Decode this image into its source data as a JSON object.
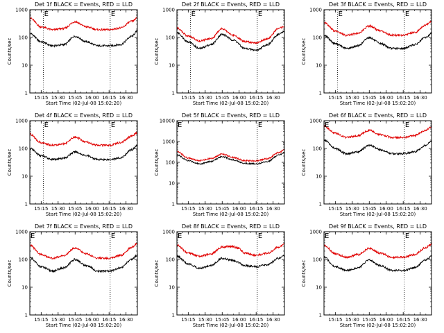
{
  "chart_data": [
    {
      "type": "line",
      "title": "Det 1f BLACK = Events, RED = LLD",
      "xlabel": "Start Time (02-Jul-08 15:02:20)",
      "ylabel": "Counts/sec",
      "yscale": "log",
      "ylim": [
        1,
        1000
      ],
      "xlim": [
        "15:05",
        "16:40"
      ],
      "x_ticks": [
        "15:15",
        "15:30",
        "15:45",
        "16:00",
        "16:15",
        "16:30"
      ],
      "y_ticks": [
        "1",
        "10",
        "100",
        "1000"
      ],
      "markers": [
        {
          "label": "E",
          "time": "15:17"
        },
        {
          "label": "E",
          "time": "16:16"
        }
      ],
      "grid": false,
      "series": [
        {
          "name": "Events",
          "color": "#000000",
          "x": [
            "15:05",
            "15:15",
            "15:25",
            "15:35",
            "15:45",
            "15:55",
            "16:05",
            "16:15",
            "16:25",
            "16:35",
            "16:40"
          ],
          "values": [
            140,
            70,
            50,
            55,
            110,
            70,
            50,
            50,
            55,
            110,
            170
          ]
        },
        {
          "name": "LLD",
          "color": "#e00000",
          "x": [
            "15:05",
            "15:15",
            "15:25",
            "15:35",
            "15:45",
            "15:55",
            "16:05",
            "16:15",
            "16:25",
            "16:35",
            "16:40"
          ],
          "values": [
            500,
            240,
            190,
            210,
            370,
            240,
            190,
            190,
            220,
            380,
            500
          ]
        }
      ]
    },
    {
      "type": "line",
      "title": "Det 2f BLACK = Events, RED = LLD",
      "xlabel": "Start Time (02-Jul-08 15:02:20)",
      "ylabel": "Counts/sec",
      "yscale": "log",
      "ylim": [
        1,
        1000
      ],
      "xlim": [
        "15:05",
        "16:40"
      ],
      "x_ticks": [
        "15:15",
        "15:30",
        "15:45",
        "16:00",
        "16:15",
        "16:30"
      ],
      "y_ticks": [
        "1",
        "10",
        "100",
        "1000"
      ],
      "markers": [
        {
          "label": "E",
          "time": "15:17"
        },
        {
          "label": "E",
          "time": "16:16"
        }
      ],
      "grid": false,
      "series": [
        {
          "name": "Events",
          "color": "#000000",
          "x": [
            "15:05",
            "15:15",
            "15:25",
            "15:35",
            "15:45",
            "15:55",
            "16:05",
            "16:15",
            "16:25",
            "16:35",
            "16:40"
          ],
          "values": [
            150,
            70,
            40,
            55,
            130,
            80,
            40,
            35,
            55,
            130,
            170
          ]
        },
        {
          "name": "LLD",
          "color": "#e00000",
          "x": [
            "15:05",
            "15:15",
            "15:25",
            "15:35",
            "15:45",
            "15:55",
            "16:05",
            "16:15",
            "16:25",
            "16:35",
            "16:40"
          ],
          "values": [
            220,
            110,
            75,
            90,
            210,
            120,
            70,
            65,
            90,
            210,
            250
          ]
        }
      ]
    },
    {
      "type": "line",
      "title": "Det 3f BLACK = Events, RED = LLD",
      "xlabel": "Start Time (02-Jul-08 15:02:20)",
      "ylabel": "Counts/sec",
      "yscale": "log",
      "ylim": [
        1,
        1000
      ],
      "xlim": [
        "15:05",
        "16:40"
      ],
      "x_ticks": [
        "15:15",
        "15:30",
        "15:45",
        "16:00",
        "16:15",
        "16:30"
      ],
      "y_ticks": [
        "1",
        "10",
        "100",
        "1000"
      ],
      "markers": [
        {
          "label": "E",
          "time": "15:17"
        },
        {
          "label": "E",
          "time": "16:16"
        }
      ],
      "grid": false,
      "series": [
        {
          "name": "Events",
          "color": "#000000",
          "x": [
            "15:05",
            "15:15",
            "15:25",
            "15:35",
            "15:45",
            "15:55",
            "16:05",
            "16:15",
            "16:25",
            "16:35",
            "16:40"
          ],
          "values": [
            120,
            60,
            40,
            50,
            100,
            60,
            40,
            40,
            55,
            100,
            140
          ]
        },
        {
          "name": "LLD",
          "color": "#e00000",
          "x": [
            "15:05",
            "15:15",
            "15:25",
            "15:35",
            "15:45",
            "15:55",
            "16:05",
            "16:15",
            "16:25",
            "16:35",
            "16:40"
          ],
          "values": [
            350,
            170,
            120,
            140,
            260,
            170,
            120,
            120,
            150,
            280,
            380
          ]
        }
      ]
    },
    {
      "type": "line",
      "title": "Det 4f BLACK = Events, RED = LLD",
      "xlabel": "Start Time (02-Jul-08 15:02:20)",
      "ylabel": "Counts/sec",
      "yscale": "log",
      "ylim": [
        1,
        1000
      ],
      "xlim": [
        "15:05",
        "16:40"
      ],
      "x_ticks": [
        "15:15",
        "15:30",
        "15:45",
        "16:00",
        "16:15",
        "16:30"
      ],
      "y_ticks": [
        "1",
        "10",
        "100",
        "1000"
      ],
      "markers": [
        {
          "label": "E",
          "time": "15:17"
        },
        {
          "label": "E",
          "time": "16:16"
        }
      ],
      "grid": false,
      "series": [
        {
          "name": "Events",
          "color": "#000000",
          "x": [
            "15:05",
            "15:15",
            "15:25",
            "15:35",
            "15:45",
            "15:55",
            "16:05",
            "16:15",
            "16:25",
            "16:35",
            "16:40"
          ],
          "values": [
            100,
            55,
            40,
            45,
            75,
            55,
            40,
            40,
            45,
            90,
            130
          ]
        },
        {
          "name": "LLD",
          "color": "#e00000",
          "x": [
            "15:05",
            "15:15",
            "15:25",
            "15:35",
            "15:45",
            "15:55",
            "16:05",
            "16:15",
            "16:25",
            "16:35",
            "16:40"
          ],
          "values": [
            330,
            160,
            130,
            150,
            260,
            170,
            130,
            130,
            160,
            280,
            380
          ]
        }
      ]
    },
    {
      "type": "line",
      "title": "Det 5f BLACK = Events, RED = LLD",
      "xlabel": "Start Time (02-Jul-08 15:02:20)",
      "ylabel": "Counts/sec",
      "yscale": "log",
      "ylim": [
        1,
        10000
      ],
      "xlim": [
        "15:05",
        "16:40"
      ],
      "x_ticks": [
        "15:15",
        "15:30",
        "15:45",
        "16:00",
        "16:15",
        "16:30"
      ],
      "y_ticks": [
        "1",
        "10",
        "100",
        "1000",
        "10000"
      ],
      "markers": [
        {
          "label": "E",
          "time": "15:05"
        },
        {
          "label": "E",
          "time": "16:16"
        }
      ],
      "grid": false,
      "series": [
        {
          "name": "Events",
          "color": "#000000",
          "x": [
            "15:05",
            "15:15",
            "15:25",
            "15:35",
            "15:45",
            "15:55",
            "16:05",
            "16:15",
            "16:25",
            "16:35",
            "16:40"
          ],
          "values": [
            230,
            120,
            85,
            110,
            190,
            130,
            90,
            85,
            110,
            220,
            300
          ]
        },
        {
          "name": "LLD",
          "color": "#e00000",
          "x": [
            "15:05",
            "15:15",
            "15:25",
            "15:35",
            "15:45",
            "15:55",
            "16:05",
            "16:15",
            "16:25",
            "16:35",
            "16:40"
          ],
          "values": [
            330,
            160,
            120,
            150,
            250,
            170,
            120,
            120,
            150,
            290,
            400
          ]
        }
      ]
    },
    {
      "type": "line",
      "title": "Det 6f BLACK = Events, RED = LLD",
      "xlabel": "Start Time (02-Jul-08 15:02:20)",
      "ylabel": "Counts/sec",
      "yscale": "log",
      "ylim": [
        1,
        1000
      ],
      "xlim": [
        "15:05",
        "16:40"
      ],
      "x_ticks": [
        "15:15",
        "15:30",
        "15:45",
        "16:00",
        "16:15",
        "16:30"
      ],
      "y_ticks": [
        "1",
        "10",
        "100",
        "1000"
      ],
      "markers": [
        {
          "label": "E",
          "time": "15:05"
        },
        {
          "label": "E",
          "time": "16:16"
        }
      ],
      "grid": false,
      "series": [
        {
          "name": "Events",
          "color": "#000000",
          "x": [
            "15:05",
            "15:15",
            "15:25",
            "15:35",
            "15:45",
            "15:55",
            "16:05",
            "16:15",
            "16:25",
            "16:35",
            "16:40"
          ],
          "values": [
            200,
            100,
            65,
            75,
            130,
            90,
            65,
            65,
            75,
            130,
            180
          ]
        },
        {
          "name": "LLD",
          "color": "#e00000",
          "x": [
            "15:05",
            "15:15",
            "15:25",
            "15:35",
            "15:45",
            "15:55",
            "16:05",
            "16:15",
            "16:25",
            "16:35",
            "16:40"
          ],
          "values": [
            650,
            350,
            250,
            290,
            450,
            320,
            250,
            250,
            290,
            450,
            620
          ]
        }
      ]
    },
    {
      "type": "line",
      "title": "Det 7f BLACK = Events, RED = LLD",
      "xlabel": "Start Time (02-Jul-08 15:02:20)",
      "ylabel": "Counts/sec",
      "yscale": "log",
      "ylim": [
        1,
        1000
      ],
      "xlim": [
        "15:05",
        "16:40"
      ],
      "x_ticks": [
        "15:15",
        "15:30",
        "15:45",
        "16:00",
        "16:15",
        "16:30"
      ],
      "y_ticks": [
        "1",
        "10",
        "100",
        "1000"
      ],
      "markers": [
        {
          "label": "E",
          "time": "15:05"
        },
        {
          "label": "E",
          "time": "16:16"
        }
      ],
      "grid": false,
      "series": [
        {
          "name": "Events",
          "color": "#000000",
          "x": [
            "15:05",
            "15:15",
            "15:25",
            "15:35",
            "15:45",
            "15:55",
            "16:05",
            "16:15",
            "16:25",
            "16:35",
            "16:40"
          ],
          "values": [
            120,
            55,
            38,
            50,
            100,
            60,
            38,
            38,
            50,
            100,
            140
          ]
        },
        {
          "name": "LLD",
          "color": "#e00000",
          "x": [
            "15:05",
            "15:15",
            "15:25",
            "15:35",
            "15:45",
            "15:55",
            "16:05",
            "16:15",
            "16:25",
            "16:35",
            "16:40"
          ],
          "values": [
            330,
            150,
            110,
            140,
            260,
            160,
            110,
            110,
            140,
            270,
            370
          ]
        }
      ]
    },
    {
      "type": "line",
      "title": "Det 8f BLACK = Events, RED = LLD",
      "xlabel": "Start Time (02-Jul-08 15:02:20)",
      "ylabel": "Counts/sec",
      "yscale": "log",
      "ylim": [
        1,
        1000
      ],
      "xlim": [
        "15:05",
        "16:40"
      ],
      "x_ticks": [
        "15:15",
        "15:30",
        "15:45",
        "16:00",
        "16:15",
        "16:30"
      ],
      "y_ticks": [
        "1",
        "10",
        "100",
        "1000"
      ],
      "markers": [
        {
          "label": "E",
          "time": "15:05"
        },
        {
          "label": "E",
          "time": "16:16"
        }
      ],
      "grid": false,
      "series": [
        {
          "name": "Events",
          "color": "#000000",
          "x": [
            "15:05",
            "15:15",
            "15:25",
            "15:35",
            "15:45",
            "15:53",
            "15:59",
            "16:05",
            "16:15",
            "16:25",
            "16:35",
            "16:40"
          ],
          "values": [
            130,
            70,
            48,
            60,
            110,
            95,
            80,
            60,
            55,
            65,
            110,
            140
          ]
        },
        {
          "name": "LLD",
          "color": "#e00000",
          "x": [
            "15:05",
            "15:15",
            "15:25",
            "15:35",
            "15:45",
            "15:53",
            "15:59",
            "16:05",
            "16:15",
            "16:25",
            "16:35",
            "16:40"
          ],
          "values": [
            330,
            170,
            130,
            160,
            280,
            300,
            260,
            170,
            140,
            170,
            280,
            350
          ]
        }
      ]
    },
    {
      "type": "line",
      "title": "Det 9f BLACK = Events, RED = LLD",
      "xlabel": "Start Time (02-Jul-08 15:02:20)",
      "ylabel": "Counts/sec",
      "yscale": "log",
      "ylim": [
        1,
        1000
      ],
      "xlim": [
        "15:05",
        "16:40"
      ],
      "x_ticks": [
        "15:15",
        "15:30",
        "15:45",
        "16:00",
        "16:15",
        "16:30"
      ],
      "y_ticks": [
        "1",
        "10",
        "100",
        "1000"
      ],
      "markers": [
        {
          "label": "E",
          "time": "15:05"
        },
        {
          "label": "E",
          "time": "16:16"
        }
      ],
      "grid": false,
      "series": [
        {
          "name": "Events",
          "color": "#000000",
          "x": [
            "15:05",
            "15:15",
            "15:25",
            "15:35",
            "15:45",
            "15:55",
            "16:05",
            "16:15",
            "16:25",
            "16:35",
            "16:40"
          ],
          "values": [
            120,
            55,
            40,
            50,
            95,
            60,
            40,
            40,
            50,
            95,
            130
          ]
        },
        {
          "name": "LLD",
          "color": "#e00000",
          "x": [
            "15:05",
            "15:15",
            "15:25",
            "15:35",
            "15:45",
            "15:55",
            "16:05",
            "16:15",
            "16:25",
            "16:35",
            "16:40"
          ],
          "values": [
            330,
            160,
            120,
            150,
            250,
            170,
            120,
            120,
            150,
            270,
            360
          ]
        }
      ]
    }
  ]
}
